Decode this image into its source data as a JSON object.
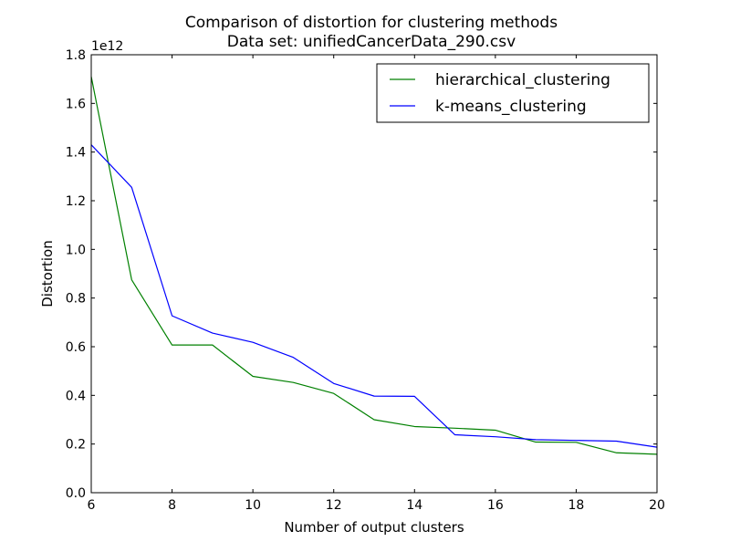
{
  "chart_data": {
    "type": "line",
    "title": "Comparison of distortion for clustering methods",
    "subtitle": "Data set: unifiedCancerData_290.csv",
    "xlabel": "Number of output clusters",
    "ylabel": "Distortion",
    "y_offset_label": "1e12",
    "xlim": [
      6,
      20
    ],
    "ylim": [
      0.0,
      1.8
    ],
    "x_ticks": [
      6,
      8,
      10,
      12,
      14,
      16,
      18,
      20
    ],
    "x_tick_labels": [
      "6",
      "8",
      "10",
      "12",
      "14",
      "16",
      "18",
      "20"
    ],
    "y_ticks": [
      0.0,
      0.2,
      0.4,
      0.6,
      0.8,
      1.0,
      1.2,
      1.4,
      1.6,
      1.8
    ],
    "y_tick_labels": [
      "0.0",
      "0.2",
      "0.4",
      "0.6",
      "0.8",
      "1.0",
      "1.2",
      "1.4",
      "1.6",
      "1.8"
    ],
    "grid": false,
    "legend_position": "top-right",
    "x": [
      6,
      7,
      8,
      9,
      10,
      11,
      12,
      13,
      14,
      15,
      16,
      17,
      18,
      19,
      20
    ],
    "series": [
      {
        "name": "hierarchical_clustering",
        "color": "#008000",
        "values": [
          1.71,
          0.875,
          0.607,
          0.607,
          0.478,
          0.453,
          0.408,
          0.3,
          0.272,
          0.265,
          0.257,
          0.208,
          0.207,
          0.164,
          0.158
        ]
      },
      {
        "name": "k-means_clustering",
        "color": "#0000ff",
        "values": [
          1.43,
          1.255,
          0.727,
          0.656,
          0.618,
          0.556,
          0.449,
          0.397,
          0.396,
          0.238,
          0.23,
          0.218,
          0.215,
          0.212,
          0.187
        ]
      }
    ]
  }
}
